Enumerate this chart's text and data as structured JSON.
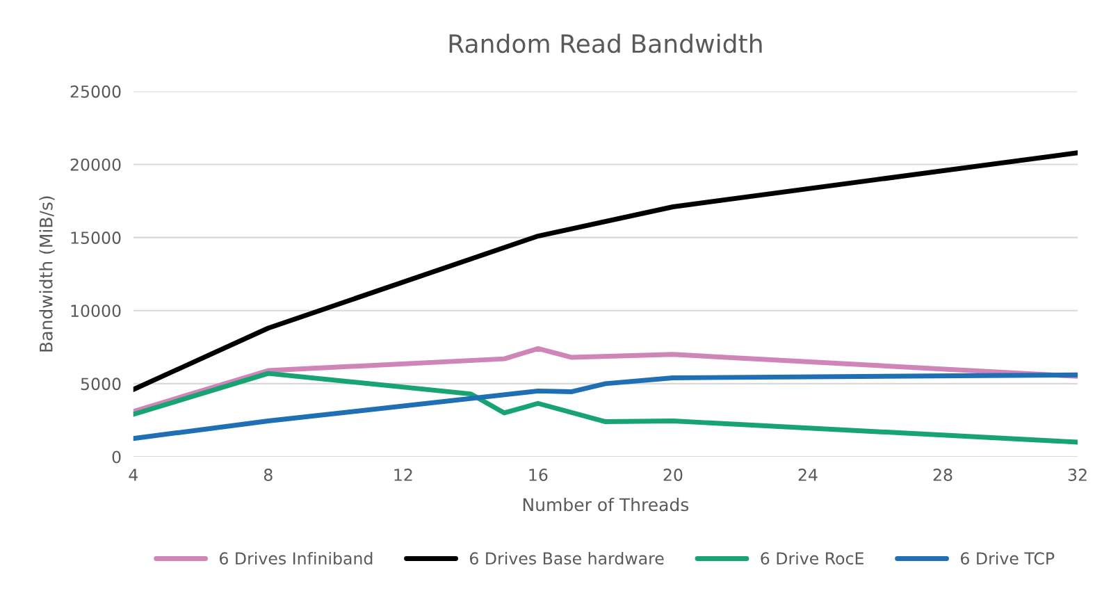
{
  "chart_data": {
    "type": "line",
    "title": "Random Read Bandwidth",
    "xlabel": "Number of Threads",
    "ylabel": "Bandwidth (MiB/s)",
    "xlim": [
      4,
      32
    ],
    "xticks": [
      4,
      8,
      12,
      16,
      20,
      24,
      28,
      32
    ],
    "ylim": [
      0,
      25000
    ],
    "yticks": [
      0,
      5000,
      10000,
      15000,
      20000,
      25000
    ],
    "grid": "y",
    "legend": "bottom",
    "marker": "none",
    "line_style": "solid",
    "series": [
      {
        "name": "6 Drives Infiniband",
        "color": "#d085b8",
        "x": [
          4,
          8,
          15,
          16,
          17,
          20,
          32
        ],
        "values": [
          3100,
          5900,
          6700,
          7400,
          6800,
          7000,
          5500
        ]
      },
      {
        "name": "6 Drives Base hardware",
        "color": "#000000",
        "x": [
          4,
          8,
          16,
          20,
          32
        ],
        "values": [
          4600,
          8800,
          15100,
          17100,
          20800
        ]
      },
      {
        "name": "6 Drive RocE",
        "color": "#18a373",
        "x": [
          4,
          8,
          14,
          15,
          16,
          18,
          20,
          32
        ],
        "values": [
          2900,
          5700,
          4300,
          3000,
          3650,
          2400,
          2450,
          1000
        ]
      },
      {
        "name": "6 Drive TCP",
        "color": "#1f6fb4",
        "x": [
          4,
          8,
          16,
          17,
          18,
          20,
          32
        ],
        "values": [
          1250,
          2450,
          4500,
          4450,
          5000,
          5400,
          5600
        ]
      }
    ]
  }
}
